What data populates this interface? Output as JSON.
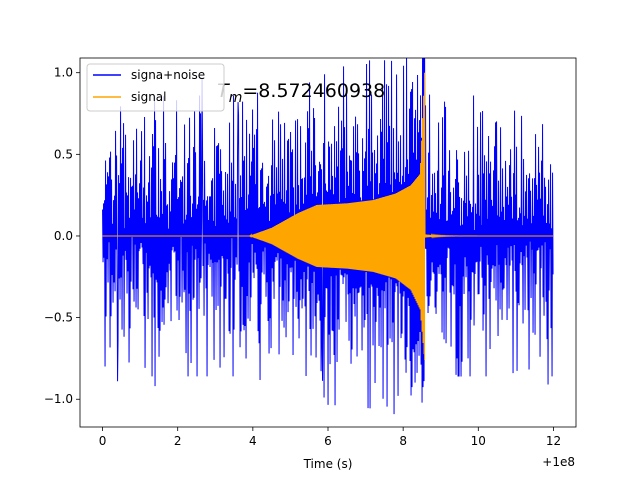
{
  "chart_data": {
    "type": "line",
    "title": "",
    "xlabel": "Time (s)",
    "ylabel": "",
    "x_offset_label": "+1e8",
    "xlim": [
      -0.6,
      12.6
    ],
    "ylim": [
      -1.17,
      1.09
    ],
    "xticks": [
      0,
      2,
      4,
      6,
      8,
      10,
      12
    ],
    "xtick_labels": [
      "0",
      "2",
      "4",
      "6",
      "8",
      "10",
      "12"
    ],
    "yticks": [
      -1.0,
      -0.5,
      0.0,
      0.5,
      1.0
    ],
    "ytick_labels": [
      "−1.0",
      "−0.5",
      "0.0",
      "0.5",
      "1.0"
    ],
    "grid": false,
    "legend_position": "upper-left",
    "annotation": {
      "prefix": "T",
      "subscript": "m",
      "value_text": "=8.572460938",
      "x": 3.05,
      "y": 0.85
    },
    "series": [
      {
        "name": "signa+noise",
        "color": "#0000ff",
        "x_range": [
          0,
          12
        ],
        "noise_amplitude_typical": 0.5,
        "y_max": 0.97,
        "y_min": -1.06,
        "spikes": [
          {
            "x": 2.65,
            "y": 0.97
          },
          {
            "x": 5.85,
            "y": -1.06
          },
          {
            "x": 1.4,
            "y": -0.92
          },
          {
            "x": 0.4,
            "y": -0.89
          },
          {
            "x": 11.85,
            "y": -0.91
          },
          {
            "x": 7.1,
            "y": 0.88
          },
          {
            "x": 9.4,
            "y": -0.85
          },
          {
            "x": 3.6,
            "y": 0.82
          }
        ]
      },
      {
        "name": "signal",
        "color": "#ffa500",
        "x_range": [
          0,
          12
        ],
        "chirp_start": 3.9,
        "plateau_time": 6.0,
        "plateau_amplitude": 0.19,
        "merger_time": 8.57,
        "upper_envelope": [
          [
            3.9,
            0.0
          ],
          [
            4.5,
            0.05
          ],
          [
            5.2,
            0.14
          ],
          [
            5.7,
            0.19
          ],
          [
            6.5,
            0.2
          ],
          [
            7.2,
            0.22
          ],
          [
            7.8,
            0.26
          ],
          [
            8.2,
            0.31
          ],
          [
            8.45,
            0.38
          ],
          [
            8.57,
            1.0
          ]
        ],
        "lower_envelope": [
          [
            3.9,
            0.0
          ],
          [
            4.5,
            -0.05
          ],
          [
            5.2,
            -0.14
          ],
          [
            5.7,
            -0.19
          ],
          [
            6.5,
            -0.2
          ],
          [
            7.2,
            -0.22
          ],
          [
            7.8,
            -0.26
          ],
          [
            8.2,
            -0.33
          ],
          [
            8.45,
            -0.45
          ],
          [
            8.57,
            -0.76
          ]
        ],
        "ringdown_amplitude": 0.01
      }
    ]
  }
}
